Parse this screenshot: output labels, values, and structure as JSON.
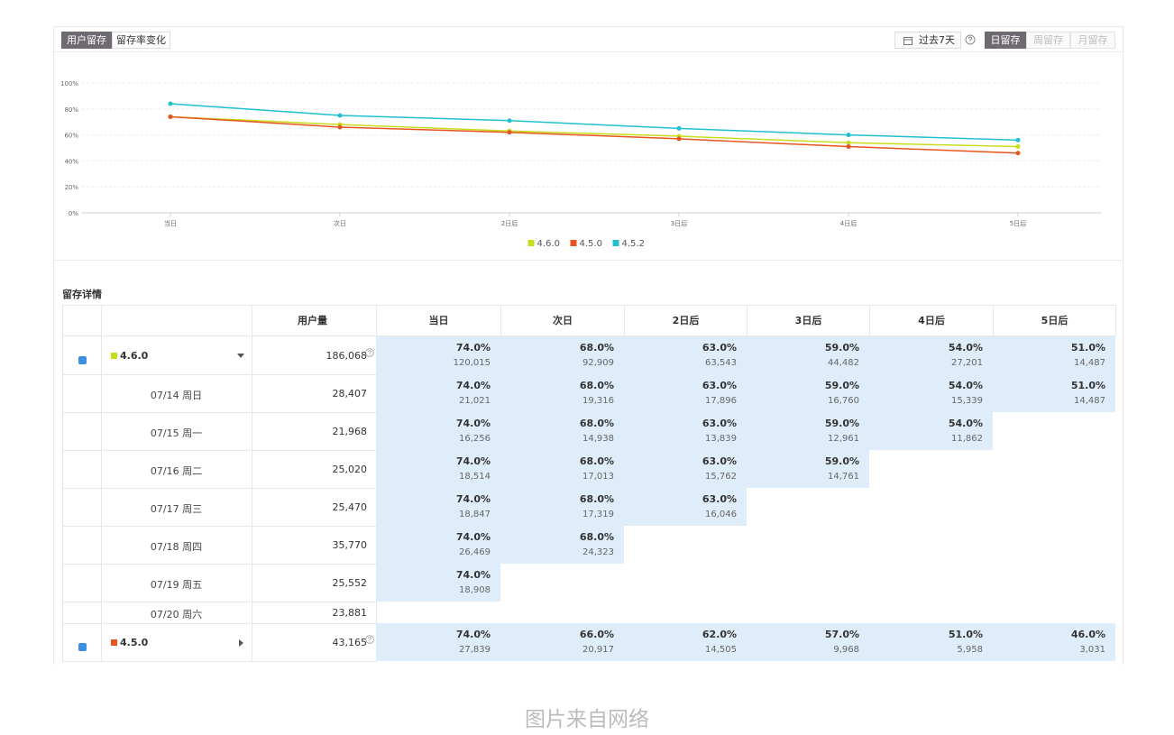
{
  "tabs": {
    "items": [
      "用户留存",
      "留存率变化"
    ],
    "active": 0
  },
  "date_range": "过去7天",
  "period_tabs": {
    "items": [
      "日留存",
      "周留存",
      "月留存"
    ],
    "active": 0
  },
  "chart_data": {
    "type": "line",
    "categories": [
      "当日",
      "次日",
      "2日后",
      "3日后",
      "4日后",
      "5日后"
    ],
    "series": [
      {
        "name": "4.6.0",
        "color": "#c8dc1e",
        "values": [
          74,
          68,
          63,
          59,
          54,
          51
        ]
      },
      {
        "name": "4.5.0",
        "color": "#e8541e",
        "values": [
          74,
          66,
          62,
          57,
          51,
          46
        ]
      },
      {
        "name": "4.5.2",
        "color": "#1fc0d0",
        "values": [
          84,
          75,
          71,
          65,
          60,
          56
        ]
      }
    ],
    "ylim": [
      0,
      100
    ],
    "yticks": [
      {
        "value": 0,
        "label": "0%"
      },
      {
        "value": 20,
        "label": "20%"
      },
      {
        "value": 40,
        "label": "40%"
      },
      {
        "value": 60,
        "label": "60%"
      },
      {
        "value": 80,
        "label": "80%"
      },
      {
        "value": 100,
        "label": "100%"
      }
    ],
    "grid": true,
    "legend": "bottom"
  },
  "table": {
    "title": "留存详情",
    "columns": [
      "用户量",
      "当日",
      "次日",
      "2日后",
      "3日后",
      "4日后",
      "5日后"
    ],
    "rows": [
      {
        "label": "4.6.0",
        "color": "#c8dc1e",
        "checked": true,
        "expanded": true,
        "users": "186,068",
        "cells": [
          {
            "rate": "74.0%",
            "count": "120,015"
          },
          {
            "rate": "68.0%",
            "count": "92,909"
          },
          {
            "rate": "63.0%",
            "count": "63,543"
          },
          {
            "rate": "59.0%",
            "count": "44,482"
          },
          {
            "rate": "54.0%",
            "count": "27,201"
          },
          {
            "rate": "51.0%",
            "count": "14,487"
          }
        ]
      },
      {
        "label": "07/14 周日",
        "users": "28,407",
        "cells": [
          {
            "rate": "74.0%",
            "count": "21,021"
          },
          {
            "rate": "68.0%",
            "count": "19,316"
          },
          {
            "rate": "63.0%",
            "count": "17,896"
          },
          {
            "rate": "59.0%",
            "count": "16,760"
          },
          {
            "rate": "54.0%",
            "count": "15,339"
          },
          {
            "rate": "51.0%",
            "count": "14,487"
          }
        ]
      },
      {
        "label": "07/15 周一",
        "users": "21,968",
        "cells": [
          {
            "rate": "74.0%",
            "count": "16,256"
          },
          {
            "rate": "68.0%",
            "count": "14,938"
          },
          {
            "rate": "63.0%",
            "count": "13,839"
          },
          {
            "rate": "59.0%",
            "count": "12,961"
          },
          {
            "rate": "54.0%",
            "count": "11,862"
          }
        ]
      },
      {
        "label": "07/16 周二",
        "users": "25,020",
        "cells": [
          {
            "rate": "74.0%",
            "count": "18,514"
          },
          {
            "rate": "68.0%",
            "count": "17,013"
          },
          {
            "rate": "63.0%",
            "count": "15,762"
          },
          {
            "rate": "59.0%",
            "count": "14,761"
          }
        ]
      },
      {
        "label": "07/17 周三",
        "users": "25,470",
        "cells": [
          {
            "rate": "74.0%",
            "count": "18,847"
          },
          {
            "rate": "68.0%",
            "count": "17,319"
          },
          {
            "rate": "63.0%",
            "count": "16,046"
          }
        ]
      },
      {
        "label": "07/18 周四",
        "users": "35,770",
        "cells": [
          {
            "rate": "74.0%",
            "count": "26,469"
          },
          {
            "rate": "68.0%",
            "count": "24,323"
          }
        ]
      },
      {
        "label": "07/19 周五",
        "users": "25,552",
        "cells": [
          {
            "rate": "74.0%",
            "count": "18,908"
          }
        ]
      },
      {
        "label": "07/20 周六",
        "users": "23,881",
        "cells": []
      },
      {
        "label": "4.5.0",
        "color": "#e8541e",
        "checked": true,
        "expanded": false,
        "users": "43,165",
        "cells": [
          {
            "rate": "74.0%",
            "count": "27,839"
          },
          {
            "rate": "66.0%",
            "count": "20,917"
          },
          {
            "rate": "62.0%",
            "count": "14,505"
          },
          {
            "rate": "57.0%",
            "count": "9,968"
          },
          {
            "rate": "51.0%",
            "count": "5,958"
          },
          {
            "rate": "46.0%",
            "count": "3,031"
          }
        ]
      }
    ]
  },
  "watermark": "图片来自网络"
}
